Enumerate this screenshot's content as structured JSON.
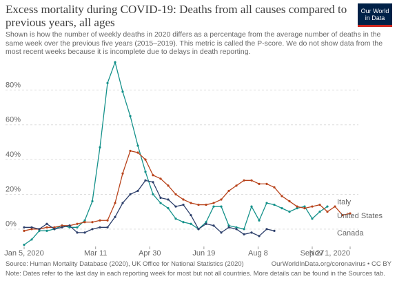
{
  "chart_data": {
    "type": "line",
    "title": "Excess mortality during COVID-19: Deaths from all causes compared to previous years, all ages",
    "subtitle": "Shown is how the number of weekly deaths in 2020 differs as a percentage from the average number of deaths in the same week over the previous five years (2015–2019). This metric is called the P-score. We do not show data from the most recent weeks because it is incomplete due to delays in death reporting.",
    "logo": "Our World in Data",
    "source": "Source: Human Mortality Database (2020), UK Office for National Statistics (2020)",
    "url": "OurWorldInData.org/coronavirus • CC BY",
    "note": "Note: Dates refer to the last day in each reporting week for most but not all countries. More details can be found in the Sources tab.",
    "x": [
      "2020-01-05",
      "2020-01-12",
      "2020-01-19",
      "2020-01-26",
      "2020-02-02",
      "2020-02-09",
      "2020-02-16",
      "2020-02-23",
      "2020-03-01",
      "2020-03-08",
      "2020-03-15",
      "2020-03-22",
      "2020-03-29",
      "2020-04-05",
      "2020-04-12",
      "2020-04-19",
      "2020-04-26",
      "2020-05-03",
      "2020-05-10",
      "2020-05-17",
      "2020-05-24",
      "2020-05-31",
      "2020-06-07",
      "2020-06-14",
      "2020-06-21",
      "2020-06-28",
      "2020-07-05",
      "2020-07-12",
      "2020-07-19",
      "2020-07-26",
      "2020-08-02",
      "2020-08-09",
      "2020-08-16",
      "2020-08-23",
      "2020-08-30",
      "2020-09-06",
      "2020-09-13",
      "2020-09-20",
      "2020-09-27",
      "2020-10-04",
      "2020-10-11",
      "2020-10-18",
      "2020-10-25",
      "2020-11-01"
    ],
    "series": [
      {
        "name": "Italy",
        "color": "#14918a",
        "values": [
          -9,
          -6,
          -1,
          -1,
          0,
          2,
          1,
          1,
          5,
          16,
          47,
          84,
          96,
          79,
          65,
          48,
          33,
          20,
          15,
          12,
          6,
          4,
          3,
          0,
          4,
          13,
          13,
          2,
          1,
          0,
          13,
          5,
          15,
          14,
          12,
          10,
          12,
          13,
          6,
          10,
          13,
          null,
          null,
          null
        ]
      },
      {
        "name": "United States",
        "color": "#b8431b",
        "values": [
          -1,
          0,
          0,
          1,
          1,
          2,
          2,
          3,
          4,
          4,
          5,
          5,
          15,
          32,
          45,
          44,
          40,
          31,
          29,
          25,
          20,
          17,
          15,
          14,
          14,
          15,
          17,
          22,
          25,
          28,
          28,
          26,
          26,
          24,
          19,
          16,
          13,
          12,
          13,
          14,
          10,
          13,
          8,
          9
        ]
      },
      {
        "name": "Canada",
        "color": "#2d3f6b",
        "values": [
          1,
          1,
          0,
          3,
          0,
          1,
          2,
          -2,
          -2,
          0,
          1,
          1,
          7,
          15,
          20,
          22,
          28,
          27,
          18,
          17,
          13,
          14,
          8,
          0,
          3,
          2,
          -2,
          1,
          0,
          -3,
          -2,
          -4,
          0,
          -1,
          null,
          null,
          null,
          null,
          null,
          null,
          null,
          null,
          null,
          null
        ]
      }
    ],
    "xlim": [
      "2020-01-05",
      "2020-11-01"
    ],
    "xticks": [
      {
        "value": "2020-01-05",
        "label": "Jan 5, 2020"
      },
      {
        "value": "2020-03-11",
        "label": "Mar 11"
      },
      {
        "value": "2020-04-30",
        "label": "Apr 30"
      },
      {
        "value": "2020-06-19",
        "label": "Jun 19"
      },
      {
        "value": "2020-08-08",
        "label": "Aug 8"
      },
      {
        "value": "2020-09-27",
        "label": "Sep 27"
      },
      {
        "value": "2020-11-01",
        "label": "Nov 1, 2020"
      }
    ],
    "ylim": [
      -10,
      100
    ],
    "yticks": [
      {
        "value": 0,
        "label": "0%"
      },
      {
        "value": 20,
        "label": "20%"
      },
      {
        "value": 40,
        "label": "40%"
      },
      {
        "value": 60,
        "label": "60%"
      },
      {
        "value": 80,
        "label": "80%"
      }
    ],
    "grid": true
  }
}
